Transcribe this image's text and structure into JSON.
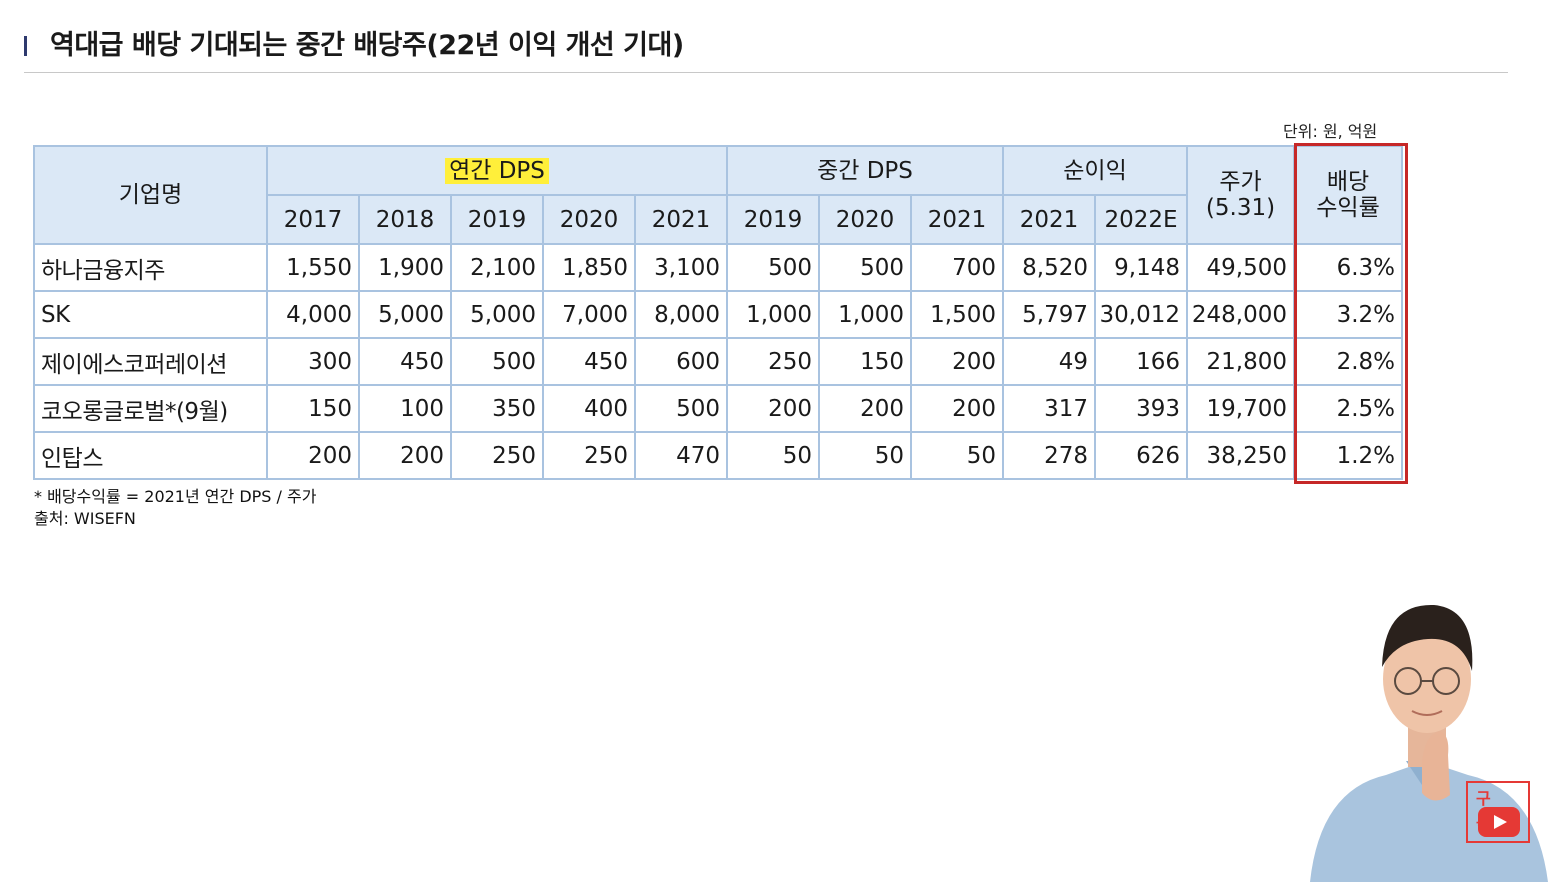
{
  "title": "역대급 배당 기대되는 중간 배당주(22년 이익 개선 기대)",
  "unit_note": "단위: 원, 억원",
  "table": {
    "company_header": "기업명",
    "annual_dps_header": "연간 DPS",
    "interim_dps_header": "중간 DPS",
    "net_income_header": "순이익",
    "price_header_line1": "주가",
    "price_header_line2": "(5.31)",
    "yield_header_line1": "배당",
    "yield_header_line2": "수익률",
    "annual_years": [
      "2017",
      "2018",
      "2019",
      "2020",
      "2021"
    ],
    "interim_years": [
      "2019",
      "2020",
      "2021"
    ],
    "income_years": [
      "2021",
      "2022E"
    ],
    "rows": [
      {
        "name": "하나금융지주",
        "annual": [
          "1,550",
          "1,900",
          "2,100",
          "1,850",
          "3,100"
        ],
        "interim": [
          "500",
          "500",
          "700"
        ],
        "income": [
          "8,520",
          "9,148"
        ],
        "price": "49,500",
        "yield": "6.3%"
      },
      {
        "name": "SK",
        "annual": [
          "4,000",
          "5,000",
          "5,000",
          "7,000",
          "8,000"
        ],
        "interim": [
          "1,000",
          "1,000",
          "1,500"
        ],
        "income": [
          "5,797",
          "30,012"
        ],
        "price": "248,000",
        "yield": "3.2%"
      },
      {
        "name": "제이에스코퍼레이션",
        "annual": [
          "300",
          "450",
          "500",
          "450",
          "600"
        ],
        "interim": [
          "250",
          "150",
          "200"
        ],
        "income": [
          "49",
          "166"
        ],
        "price": "21,800",
        "yield": "2.8%"
      },
      {
        "name": "코오롱글로벌*(9월)",
        "annual": [
          "150",
          "100",
          "350",
          "400",
          "500"
        ],
        "interim": [
          "200",
          "200",
          "200"
        ],
        "income": [
          "317",
          "393"
        ],
        "price": "19,700",
        "yield": "2.5%"
      },
      {
        "name": "인탑스",
        "annual": [
          "200",
          "200",
          "250",
          "250",
          "470"
        ],
        "interim": [
          "50",
          "50",
          "50"
        ],
        "income": [
          "278",
          "626"
        ],
        "price": "38,250",
        "yield": "1.2%"
      }
    ]
  },
  "footnote": "* 배당수익률 = 2021년 연간 DPS / 주가",
  "source": "출처: WISEFN",
  "badge_text": "구독",
  "colors": {
    "header_bg": "#dbe8f6",
    "border": "#a9c3e0",
    "highlight": "#ffef3a",
    "yield_box": "#c62828"
  }
}
